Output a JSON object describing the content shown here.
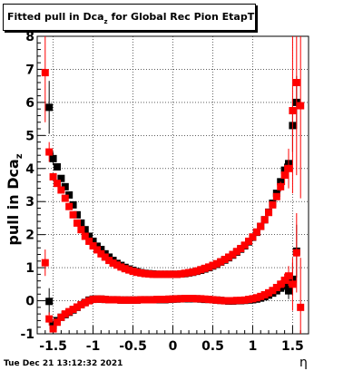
{
  "title": {
    "main": "Fitted pull in Dca",
    "sub": "z",
    "rest": " for Global Rec Pion EtapT"
  },
  "ylabel": {
    "main": "pull in Dca",
    "sub": "z"
  },
  "xlabel": "η",
  "timestamp": "Tue Dec 21 13:12:32 2021",
  "colors": {
    "red": "#ff0000",
    "black": "#000000",
    "axis": "#000000",
    "grid": "#000000"
  },
  "chart_data": {
    "type": "scatter",
    "xlim": [
      -1.7,
      1.7
    ],
    "ylim": [
      -1,
      8
    ],
    "grid": true,
    "x_ticks": [
      -1.5,
      -1,
      -0.5,
      0,
      0.5,
      1,
      1.5
    ],
    "x_tick_labels": [
      "-1.5",
      "-1",
      "-0.5",
      "0",
      "0.5",
      "1",
      "1.5"
    ],
    "y_ticks": [
      -1,
      0,
      1,
      2,
      3,
      4,
      5,
      6,
      7,
      8
    ],
    "y_tick_labels": [
      "-1",
      "0",
      "1",
      "2",
      "3",
      "4",
      "5",
      "6",
      "7",
      "8"
    ],
    "series": [
      {
        "marker": "square",
        "color": "black",
        "sigma": {
          "x": [
            -1.55,
            -1.5,
            -1.45,
            -1.4,
            -1.35,
            -1.3,
            -1.25,
            -1.2,
            -1.15,
            -1.1,
            -1.05,
            -1.0,
            -0.95,
            -0.9,
            -0.85,
            -0.8,
            -0.75,
            -0.7,
            -0.65,
            -0.6,
            -0.55,
            -0.5,
            -0.45,
            -0.4,
            -0.35,
            -0.3,
            -0.25,
            -0.2,
            -0.15,
            -0.1,
            -0.05,
            0.0,
            0.05,
            0.1,
            0.15,
            0.2,
            0.25,
            0.3,
            0.35,
            0.4,
            0.45,
            0.5,
            0.55,
            0.6,
            0.65,
            0.7,
            0.75,
            0.8,
            0.85,
            0.9,
            0.95,
            1.0,
            1.05,
            1.1,
            1.15,
            1.2,
            1.25,
            1.3,
            1.35,
            1.4,
            1.45,
            1.5,
            1.55
          ],
          "y": [
            5.85,
            4.3,
            4.05,
            3.7,
            3.45,
            3.2,
            2.9,
            2.6,
            2.35,
            2.15,
            1.95,
            1.8,
            1.65,
            1.55,
            1.42,
            1.32,
            1.22,
            1.13,
            1.07,
            1.01,
            0.96,
            0.92,
            0.88,
            0.85,
            0.83,
            0.82,
            0.81,
            0.8,
            0.8,
            0.8,
            0.8,
            0.8,
            0.8,
            0.81,
            0.82,
            0.84,
            0.86,
            0.89,
            0.92,
            0.96,
            1.0,
            1.05,
            1.1,
            1.17,
            1.23,
            1.3,
            1.38,
            1.47,
            1.56,
            1.66,
            1.78,
            1.92,
            2.07,
            2.25,
            2.45,
            2.68,
            2.95,
            3.25,
            3.6,
            3.95,
            4.15,
            5.3,
            6.0
          ],
          "err": [
            0.8,
            0.2,
            0.1,
            0.05,
            0.05,
            0.05,
            0.05,
            0.04,
            0.04,
            0.04,
            0.03,
            0.03,
            0.03,
            0.03,
            0.03,
            0.02,
            0.02,
            0.02,
            0.02,
            0.02,
            0.02,
            0.02,
            0.02,
            0.02,
            0.02,
            0.02,
            0.02,
            0.02,
            0.02,
            0.02,
            0.02,
            0.02,
            0.02,
            0.02,
            0.02,
            0.02,
            0.02,
            0.02,
            0.02,
            0.02,
            0.02,
            0.02,
            0.02,
            0.02,
            0.02,
            0.03,
            0.03,
            0.03,
            0.03,
            0.03,
            0.03,
            0.04,
            0.04,
            0.04,
            0.04,
            0.05,
            0.05,
            0.05,
            0.1,
            0.2,
            0.3,
            0.8,
            0.8
          ]
        },
        "mean": {
          "x": [
            -1.55,
            -1.5,
            -1.45,
            -1.4,
            -1.35,
            -1.3,
            -1.25,
            -1.2,
            -1.15,
            -1.1,
            -1.05,
            -1.0,
            -0.95,
            -0.9,
            -0.85,
            -0.8,
            -0.75,
            -0.7,
            -0.65,
            -0.6,
            -0.55,
            -0.5,
            -0.45,
            -0.4,
            -0.35,
            -0.3,
            -0.25,
            -0.2,
            -0.15,
            -0.1,
            -0.05,
            0.0,
            0.05,
            0.1,
            0.15,
            0.2,
            0.25,
            0.3,
            0.35,
            0.4,
            0.45,
            0.5,
            0.55,
            0.6,
            0.65,
            0.7,
            0.75,
            0.8,
            0.85,
            0.9,
            0.95,
            1.0,
            1.05,
            1.1,
            1.15,
            1.2,
            1.25,
            1.3,
            1.35,
            1.4,
            1.45,
            1.5,
            1.55
          ],
          "y": [
            -0.02,
            -0.75,
            -0.6,
            -0.5,
            -0.42,
            -0.35,
            -0.28,
            -0.2,
            -0.12,
            -0.05,
            0.02,
            0.05,
            0.05,
            0.05,
            0.04,
            0.03,
            0.03,
            0.03,
            0.02,
            0.02,
            0.02,
            0.02,
            0.02,
            0.03,
            0.03,
            0.03,
            0.03,
            0.03,
            0.03,
            0.03,
            0.04,
            0.05,
            0.05,
            0.06,
            0.06,
            0.06,
            0.06,
            0.06,
            0.05,
            0.04,
            0.04,
            0.03,
            0.02,
            0.01,
            0.0,
            -0.01,
            -0.01,
            0.0,
            0.0,
            0.01,
            0.02,
            0.03,
            0.05,
            0.08,
            0.12,
            0.17,
            0.23,
            0.3,
            0.38,
            0.48,
            0.3,
            0.65,
            1.5
          ],
          "err": [
            0.4,
            0.15,
            0.08,
            0.06,
            0.05,
            0.04,
            0.04,
            0.04,
            0.03,
            0.03,
            0.03,
            0.03,
            0.03,
            0.02,
            0.02,
            0.02,
            0.02,
            0.02,
            0.02,
            0.02,
            0.02,
            0.02,
            0.02,
            0.02,
            0.02,
            0.02,
            0.02,
            0.02,
            0.02,
            0.02,
            0.02,
            0.02,
            0.02,
            0.02,
            0.02,
            0.02,
            0.02,
            0.02,
            0.02,
            0.02,
            0.02,
            0.02,
            0.02,
            0.02,
            0.02,
            0.02,
            0.02,
            0.02,
            0.02,
            0.03,
            0.03,
            0.03,
            0.03,
            0.04,
            0.04,
            0.05,
            0.05,
            0.06,
            0.08,
            0.15,
            0.25,
            0.5,
            0.8
          ]
        }
      },
      {
        "marker": "square",
        "color": "red",
        "sigma": {
          "x": [
            -1.6,
            -1.55,
            -1.5,
            -1.45,
            -1.4,
            -1.35,
            -1.3,
            -1.25,
            -1.2,
            -1.15,
            -1.1,
            -1.05,
            -1.0,
            -0.95,
            -0.9,
            -0.85,
            -0.8,
            -0.75,
            -0.7,
            -0.65,
            -0.6,
            -0.55,
            -0.5,
            -0.45,
            -0.4,
            -0.35,
            -0.3,
            -0.25,
            -0.2,
            -0.15,
            -0.1,
            -0.05,
            0.0,
            0.05,
            0.1,
            0.15,
            0.2,
            0.25,
            0.3,
            0.35,
            0.4,
            0.45,
            0.5,
            0.55,
            0.6,
            0.65,
            0.7,
            0.75,
            0.8,
            0.85,
            0.9,
            0.95,
            1.0,
            1.05,
            1.1,
            1.15,
            1.2,
            1.25,
            1.3,
            1.35,
            1.4,
            1.45,
            1.5,
            1.55,
            1.6
          ],
          "y": [
            6.9,
            4.5,
            3.75,
            3.55,
            3.35,
            3.1,
            2.85,
            2.6,
            2.35,
            2.15,
            1.95,
            1.8,
            1.66,
            1.54,
            1.42,
            1.32,
            1.22,
            1.14,
            1.08,
            1.02,
            0.97,
            0.93,
            0.89,
            0.86,
            0.84,
            0.82,
            0.81,
            0.8,
            0.8,
            0.8,
            0.8,
            0.8,
            0.8,
            0.8,
            0.81,
            0.83,
            0.85,
            0.87,
            0.9,
            0.94,
            0.98,
            1.02,
            1.07,
            1.12,
            1.18,
            1.25,
            1.32,
            1.4,
            1.49,
            1.58,
            1.68,
            1.8,
            1.93,
            2.08,
            2.25,
            2.45,
            2.67,
            2.9,
            3.15,
            3.45,
            3.8,
            4.0,
            5.75,
            6.6,
            5.9
          ],
          "err": [
            1.5,
            0.3,
            0.1,
            0.05,
            0.05,
            0.05,
            0.05,
            0.04,
            0.04,
            0.04,
            0.03,
            0.03,
            0.03,
            0.03,
            0.03,
            0.02,
            0.02,
            0.02,
            0.02,
            0.02,
            0.02,
            0.02,
            0.02,
            0.02,
            0.02,
            0.02,
            0.02,
            0.02,
            0.02,
            0.02,
            0.02,
            0.02,
            0.02,
            0.02,
            0.02,
            0.02,
            0.02,
            0.02,
            0.02,
            0.02,
            0.02,
            0.02,
            0.02,
            0.02,
            0.02,
            0.03,
            0.03,
            0.03,
            0.03,
            0.03,
            0.03,
            0.04,
            0.04,
            0.04,
            0.04,
            0.05,
            0.05,
            0.05,
            0.1,
            0.15,
            0.3,
            0.6,
            2.5,
            2.8,
            2.8
          ]
        },
        "mean": {
          "x": [
            -1.6,
            -1.55,
            -1.5,
            -1.45,
            -1.4,
            -1.35,
            -1.3,
            -1.25,
            -1.2,
            -1.15,
            -1.1,
            -1.05,
            -1.0,
            -0.95,
            -0.9,
            -0.85,
            -0.8,
            -0.75,
            -0.7,
            -0.65,
            -0.6,
            -0.55,
            -0.5,
            -0.45,
            -0.4,
            -0.35,
            -0.3,
            -0.25,
            -0.2,
            -0.15,
            -0.1,
            -0.05,
            0.0,
            0.05,
            0.1,
            0.15,
            0.2,
            0.25,
            0.3,
            0.35,
            0.4,
            0.45,
            0.5,
            0.55,
            0.6,
            0.65,
            0.7,
            0.75,
            0.8,
            0.85,
            0.9,
            0.95,
            1.0,
            1.05,
            1.1,
            1.15,
            1.2,
            1.25,
            1.3,
            1.35,
            1.4,
            1.45,
            1.5,
            1.55,
            1.6
          ],
          "y": [
            1.15,
            -0.55,
            -0.85,
            -0.65,
            -0.5,
            -0.4,
            -0.33,
            -0.26,
            -0.19,
            -0.12,
            -0.06,
            0.0,
            0.04,
            0.05,
            0.05,
            0.04,
            0.03,
            0.03,
            0.03,
            0.02,
            0.02,
            0.02,
            0.02,
            0.02,
            0.03,
            0.03,
            0.03,
            0.03,
            0.04,
            0.04,
            0.04,
            0.05,
            0.05,
            0.06,
            0.06,
            0.07,
            0.07,
            0.07,
            0.06,
            0.06,
            0.05,
            0.04,
            0.03,
            0.02,
            0.01,
            0.0,
            0.0,
            0.0,
            0.01,
            0.01,
            0.02,
            0.04,
            0.06,
            0.09,
            0.13,
            0.18,
            0.24,
            0.31,
            0.4,
            0.5,
            0.62,
            0.75,
            0.5,
            1.45,
            -0.2
          ],
          "err": [
            0.4,
            0.2,
            0.1,
            0.06,
            0.05,
            0.04,
            0.04,
            0.04,
            0.03,
            0.03,
            0.03,
            0.03,
            0.03,
            0.02,
            0.02,
            0.02,
            0.02,
            0.02,
            0.02,
            0.02,
            0.02,
            0.02,
            0.02,
            0.02,
            0.02,
            0.02,
            0.02,
            0.02,
            0.02,
            0.02,
            0.02,
            0.02,
            0.02,
            0.02,
            0.02,
            0.02,
            0.02,
            0.02,
            0.02,
            0.02,
            0.02,
            0.02,
            0.02,
            0.02,
            0.02,
            0.02,
            0.02,
            0.02,
            0.02,
            0.03,
            0.03,
            0.03,
            0.03,
            0.04,
            0.04,
            0.05,
            0.05,
            0.06,
            0.08,
            0.12,
            0.2,
            0.3,
            0.8,
            1.2,
            1.5
          ]
        }
      }
    ]
  }
}
